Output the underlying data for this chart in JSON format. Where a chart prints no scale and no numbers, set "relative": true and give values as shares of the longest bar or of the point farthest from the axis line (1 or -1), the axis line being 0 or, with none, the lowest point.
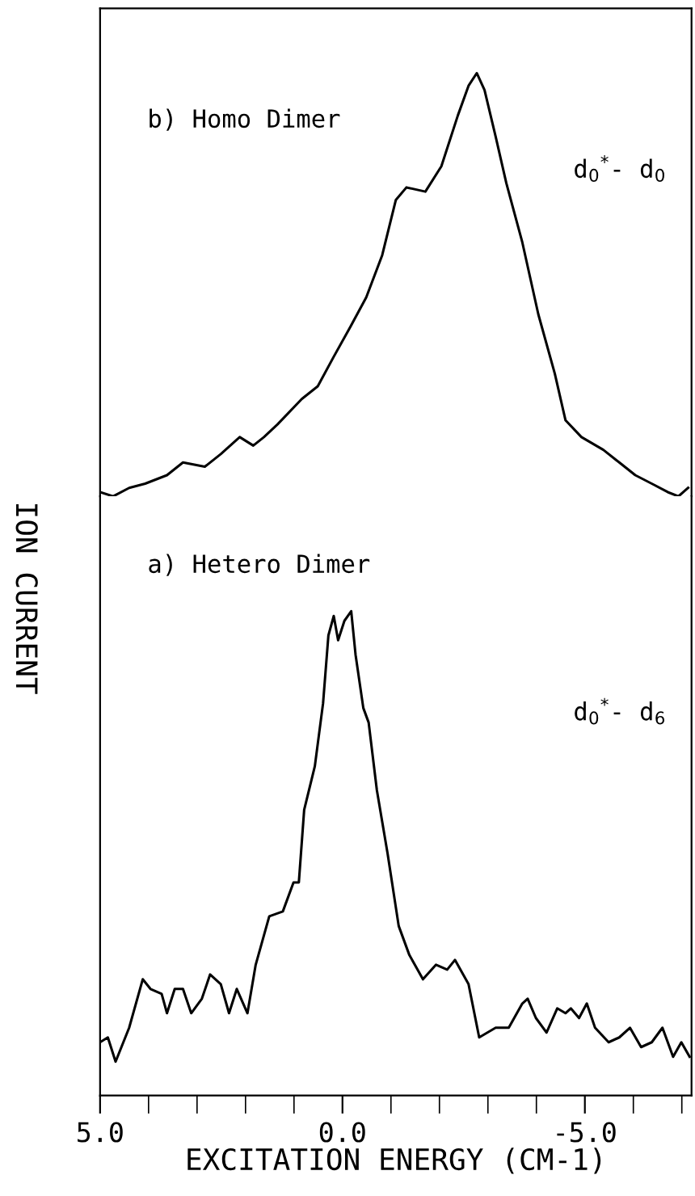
{
  "chart_data": [
    {
      "type": "line",
      "relative": true,
      "xlim": [
        5.0,
        -7.2
      ],
      "tick_labels": false,
      "color": "#000000",
      "annotations": [
        "b) Homo Dimer",
        "d$_{0}$$^{*}$- d$_{0}$"
      ],
      "x": [
        5.0,
        4.73,
        4.4,
        4.07,
        3.62,
        3.29,
        2.84,
        2.51,
        2.12,
        1.84,
        1.62,
        1.34,
        0.84,
        0.51,
        0.18,
        -0.16,
        -0.49,
        -0.82,
        -1.1,
        -1.32,
        -1.71,
        -2.04,
        -2.38,
        -2.6,
        -2.77,
        -2.93,
        -3.16,
        -3.38,
        -3.71,
        -4.04,
        -4.38,
        -4.6,
        -4.93,
        -5.38,
        -5.71,
        -6.04,
        -6.38,
        -6.71,
        -6.93,
        -7.13
      ],
      "values": [
        0.01,
        0.0,
        0.02,
        0.03,
        0.05,
        0.08,
        0.07,
        0.1,
        0.14,
        0.12,
        0.14,
        0.17,
        0.23,
        0.26,
        0.33,
        0.4,
        0.47,
        0.57,
        0.7,
        0.73,
        0.72,
        0.78,
        0.9,
        0.97,
        1.0,
        0.96,
        0.85,
        0.74,
        0.6,
        0.43,
        0.29,
        0.18,
        0.14,
        0.11,
        0.08,
        0.05,
        0.03,
        0.01,
        0.0,
        0.02
      ]
    },
    {
      "type": "line",
      "relative": true,
      "xlim": [
        5.0,
        -7.2
      ],
      "tick_labels": "x",
      "color": "#000000",
      "xticks": [
        {
          "value": 5,
          "label": "5.0"
        },
        {
          "value": 4,
          "label": null
        },
        {
          "value": 3,
          "label": null
        },
        {
          "value": 2,
          "label": null
        },
        {
          "value": 1,
          "label": null
        },
        {
          "value": 0,
          "label": "0.0"
        },
        {
          "value": -1,
          "label": null
        },
        {
          "value": -2,
          "label": null
        },
        {
          "value": -3,
          "label": null
        },
        {
          "value": -4,
          "label": null
        },
        {
          "value": -5,
          "label": "-5.0"
        },
        {
          "value": -6,
          "label": null
        },
        {
          "value": -7,
          "label": null
        }
      ],
      "xlabel": "EXCITATION ENERGY (CM-1)",
      "ylabel": "ION CURRENT",
      "annotations": [
        "a) Hetero Dimer",
        "d$_{0}$$^{*}$- d$_{6}$"
      ],
      "x": [
        5.0,
        4.84,
        4.68,
        4.4,
        4.12,
        3.96,
        3.73,
        3.62,
        3.46,
        3.29,
        3.12,
        2.9,
        2.73,
        2.51,
        2.34,
        2.18,
        1.96,
        1.79,
        1.51,
        1.23,
        1.01,
        0.9,
        0.79,
        0.57,
        0.4,
        0.29,
        0.18,
        0.09,
        -0.04,
        -0.18,
        -0.27,
        -0.43,
        -0.54,
        -0.71,
        -0.93,
        -1.16,
        -1.38,
        -1.66,
        -1.93,
        -2.16,
        -2.32,
        -2.6,
        -2.82,
        -3.16,
        -3.43,
        -3.71,
        -3.82,
        -3.99,
        -4.21,
        -4.43,
        -4.6,
        -4.71,
        -4.88,
        -5.04,
        -5.21,
        -5.49,
        -5.71,
        -5.93,
        -6.16,
        -6.38,
        -6.6,
        -6.82,
        -6.99,
        -7.16
      ],
      "values": [
        0.11,
        0.12,
        0.07,
        0.14,
        0.24,
        0.22,
        0.21,
        0.17,
        0.22,
        0.22,
        0.17,
        0.2,
        0.25,
        0.23,
        0.17,
        0.22,
        0.17,
        0.27,
        0.37,
        0.38,
        0.44,
        0.44,
        0.59,
        0.68,
        0.81,
        0.95,
        0.99,
        0.94,
        0.98,
        1.0,
        0.91,
        0.8,
        0.77,
        0.63,
        0.5,
        0.35,
        0.29,
        0.24,
        0.27,
        0.26,
        0.28,
        0.23,
        0.12,
        0.14,
        0.14,
        0.19,
        0.2,
        0.16,
        0.13,
        0.18,
        0.17,
        0.18,
        0.16,
        0.19,
        0.14,
        0.11,
        0.12,
        0.14,
        0.1,
        0.11,
        0.14,
        0.08,
        0.11,
        0.08
      ]
    }
  ]
}
